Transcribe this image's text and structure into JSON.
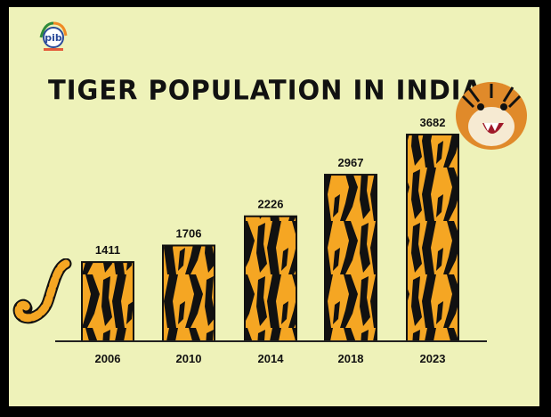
{
  "logo": {
    "text": "pib",
    "icon": "pib-logo-icon"
  },
  "icons": {
    "tail": "tiger-tail-icon",
    "head": "tiger-head-icon"
  },
  "colors": {
    "background": "#eef2b9",
    "bar_orange": "#f5a623",
    "stripe": "#111111"
  },
  "chart_data": {
    "type": "bar",
    "title": "TIGER POPULATION IN INDIA",
    "categories": [
      "2006",
      "2010",
      "2014",
      "2018",
      "2023"
    ],
    "values": [
      1411,
      1706,
      2226,
      2967,
      3682
    ],
    "xlabel": "",
    "ylabel": "",
    "ylim": [
      0,
      3682
    ],
    "grid": false,
    "legend": "none",
    "data_labels": true
  }
}
